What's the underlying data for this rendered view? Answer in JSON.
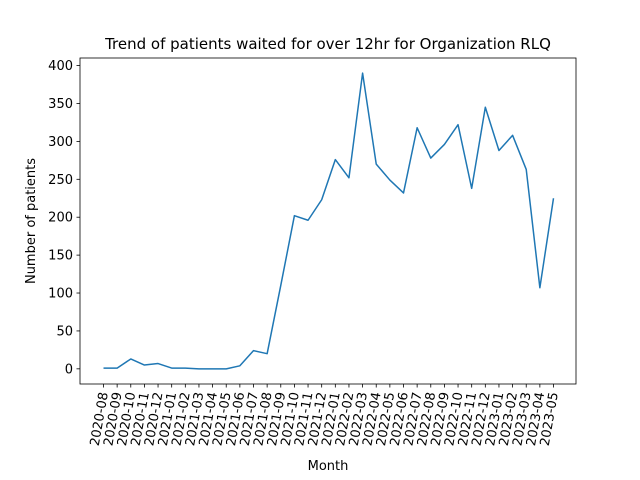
{
  "chart_data": {
    "type": "line",
    "title": "Trend of patients waited for over 12hr for Organization RLQ",
    "xlabel": "Month",
    "ylabel": "Number of patients",
    "ylim": [
      -20,
      410
    ],
    "yticks": [
      0,
      50,
      100,
      150,
      200,
      250,
      300,
      350,
      400
    ],
    "grid": false,
    "legend": "none",
    "categories": [
      "2020-08",
      "2020-09",
      "2020-10",
      "2020-11",
      "2020-12",
      "2021-01",
      "2021-02",
      "2021-03",
      "2021-04",
      "2021-05",
      "2021-06",
      "2021-07",
      "2021-08",
      "2021-09",
      "2021-10",
      "2021-11",
      "2021-12",
      "2022-01",
      "2022-02",
      "2022-03",
      "2022-04",
      "2022-05",
      "2022-06",
      "2022-07",
      "2022-08",
      "2022-09",
      "2022-10",
      "2022-11",
      "2022-12",
      "2023-01",
      "2023-02",
      "2023-03",
      "2023-04",
      "2023-05"
    ],
    "series": [
      {
        "color": "#1f77b4",
        "values": [
          1,
          1,
          13,
          5,
          7,
          1,
          1,
          0,
          0,
          0,
          4,
          24,
          20,
          110,
          202,
          196,
          223,
          276,
          252,
          390,
          270,
          249,
          232,
          318,
          278,
          296,
          322,
          238,
          345,
          288,
          308,
          263,
          107,
          225
        ]
      }
    ]
  }
}
